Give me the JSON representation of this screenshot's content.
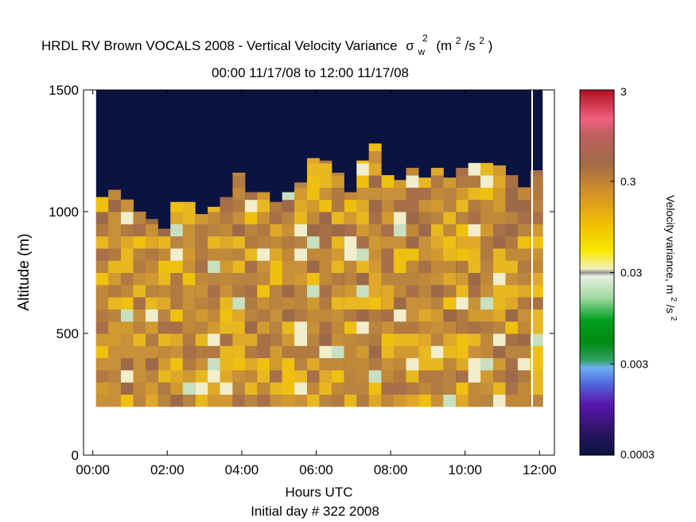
{
  "chart_data": {
    "type": "heatmap",
    "title": "HRDL RV Brown VOCALS 2008 - Vertical Velocity Variance",
    "title_symbol": "σ",
    "title_symbol_sub": "w",
    "title_symbol_sup": "2",
    "title_units_open": "(m",
    "title_units_sup1": "2",
    "title_units_mid": "/s",
    "title_units_sup2": "2",
    "title_units_close": ")",
    "subtitle": "00:00 11/17/08 to 12:00 11/17/08",
    "xlabel": "Hours UTC",
    "xlabel2": "Initial day # 322  2008",
    "ylabel": "Altitude (m)",
    "x_ticks": [
      "00:00",
      "02:00",
      "04:00",
      "06:00",
      "08:00",
      "10:00",
      "12:00"
    ],
    "y_ticks": [
      "0",
      "500",
      "1000",
      "1500"
    ],
    "xlim_hours": [
      -0.25,
      12.4
    ],
    "ylim": [
      0,
      1500
    ],
    "colorbar": {
      "label": "Velocity variance, m",
      "label_sup1": "2",
      "label_mid": "/s",
      "label_sup2": "2",
      "ticks": [
        "0.0003",
        "0.003",
        "0.03",
        "0.3",
        "3"
      ],
      "scale": "log",
      "range": [
        0.0003,
        3
      ]
    },
    "colors": {
      "background_fill": "#0b1340",
      "white_gap": "#ffffff"
    },
    "altitude_bins_m": [
      200,
      2000,
      50
    ],
    "hours": [
      0.25,
      0.58,
      0.92,
      1.25,
      1.58,
      1.92,
      2.25,
      2.58,
      2.92,
      3.25,
      3.58,
      3.92,
      4.25,
      4.58,
      4.92,
      5.25,
      5.58,
      5.92,
      6.25,
      6.58,
      6.92,
      7.25,
      7.58,
      7.92,
      8.25,
      8.58,
      8.92,
      9.25,
      9.58,
      9.92,
      10.25,
      10.58,
      10.92,
      11.25,
      11.58,
      11.92
    ],
    "cloud_top_m": [
      1060,
      1090,
      1050,
      1000,
      970,
      930,
      1040,
      1040,
      990,
      1020,
      1060,
      1160,
      1080,
      1080,
      1040,
      1080,
      1120,
      1220,
      1210,
      1160,
      1080,
      1210,
      1280,
      1150,
      1130,
      1180,
      1140,
      1180,
      1140,
      1180,
      1200,
      1200,
      1190,
      1150,
      1100,
      1170
    ],
    "lowest_valid_m": 200
  }
}
